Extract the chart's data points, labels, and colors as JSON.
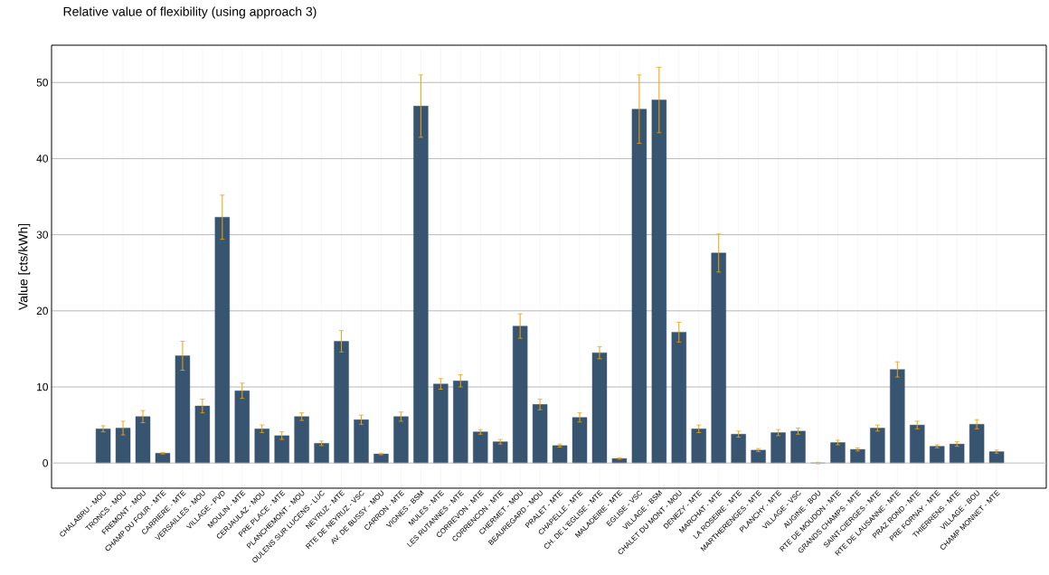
{
  "chart_data": {
    "type": "bar",
    "title": "Relative value of flexibility (using approach 3)",
    "ylabel": "Value [cts/kWh]",
    "categories": [
      "CHALABRU - MOU",
      "TRONCS - MOU",
      "FREMONT - MOU",
      "CHAMP DU FOUR - MTE",
      "CARRIERE - MTE",
      "VERSAILLES - MOU",
      "VILLAGE - PVD",
      "MOULIN - MTE",
      "CERJAULAZ - MOU",
      "PRE PLACE - MTE",
      "PLANCHEMONT - MOU",
      "OULENS SUR LUCENS - LUC",
      "NEYRUZ - MTE",
      "RTE DE NEYRUZ - VSC",
      "AV. DE BUSSY - MOU",
      "CARRON - MTE",
      "VIGNES - BSM",
      "MULES - MTE",
      "LES RUTANNES - MTE",
      "CORREVON - MTE",
      "CORRENCON - MTE",
      "CHERMET - MOU",
      "BEAUREGARD - MOU",
      "PRALET - MTE",
      "CHAPELLE - MTE",
      "CH. DE L'EGLISE - MTE",
      "MALADEIRE - MTE",
      "EGLISE - VSC",
      "VILLAGE - BSM",
      "CHALET DU MONT - MOU",
      "DENEZY - MTE",
      "MARCHAT - MTE",
      "LA ROSEIRE - MTE",
      "MARTHERENGES - MTE",
      "PLANCHY - MTE",
      "VILLAGE - VSC",
      "AUGINE - BOU",
      "RTE DE MOUDON - MTE",
      "GRANDS CHAMPS - MTE",
      "SAINT-CIERGES - MTE",
      "RTE DE LAUSANNE - MTE",
      "PRAZ ROND - MTE",
      "PRE FORNAY - MTE",
      "THIERRENS - MTE",
      "VILLAGE - BOU",
      "CHAMP MONNET - MTE"
    ],
    "values": [
      4.5,
      4.6,
      6.1,
      1.3,
      14.1,
      7.5,
      32.3,
      9.5,
      4.5,
      3.6,
      6.1,
      2.6,
      16.0,
      5.7,
      1.2,
      6.1,
      46.9,
      10.4,
      10.8,
      4.1,
      2.8,
      18.0,
      7.7,
      2.3,
      6.0,
      14.5,
      0.6,
      46.5,
      47.7,
      17.2,
      4.5,
      27.6,
      3.8,
      1.7,
      4.0,
      4.2,
      0.0,
      2.7,
      1.8,
      4.6,
      12.3,
      5.0,
      2.2,
      2.5,
      5.1,
      1.5
    ],
    "errors": [
      0.4,
      0.9,
      0.8,
      0.1,
      1.9,
      0.9,
      2.9,
      1.0,
      0.5,
      0.5,
      0.5,
      0.3,
      1.4,
      0.6,
      0.1,
      0.6,
      4.1,
      0.7,
      0.8,
      0.3,
      0.3,
      1.6,
      0.7,
      0.2,
      0.6,
      0.8,
      0.1,
      4.5,
      4.3,
      1.3,
      0.5,
      2.5,
      0.4,
      0.2,
      0.4,
      0.4,
      0.1,
      0.3,
      0.2,
      0.4,
      1.0,
      0.5,
      0.2,
      0.3,
      0.6,
      0.2
    ],
    "color": "#375470",
    "ylim": [
      -3.3,
      54.9
    ],
    "yticks": [
      0,
      10,
      20,
      30,
      40,
      50
    ],
    "grid": true
  }
}
